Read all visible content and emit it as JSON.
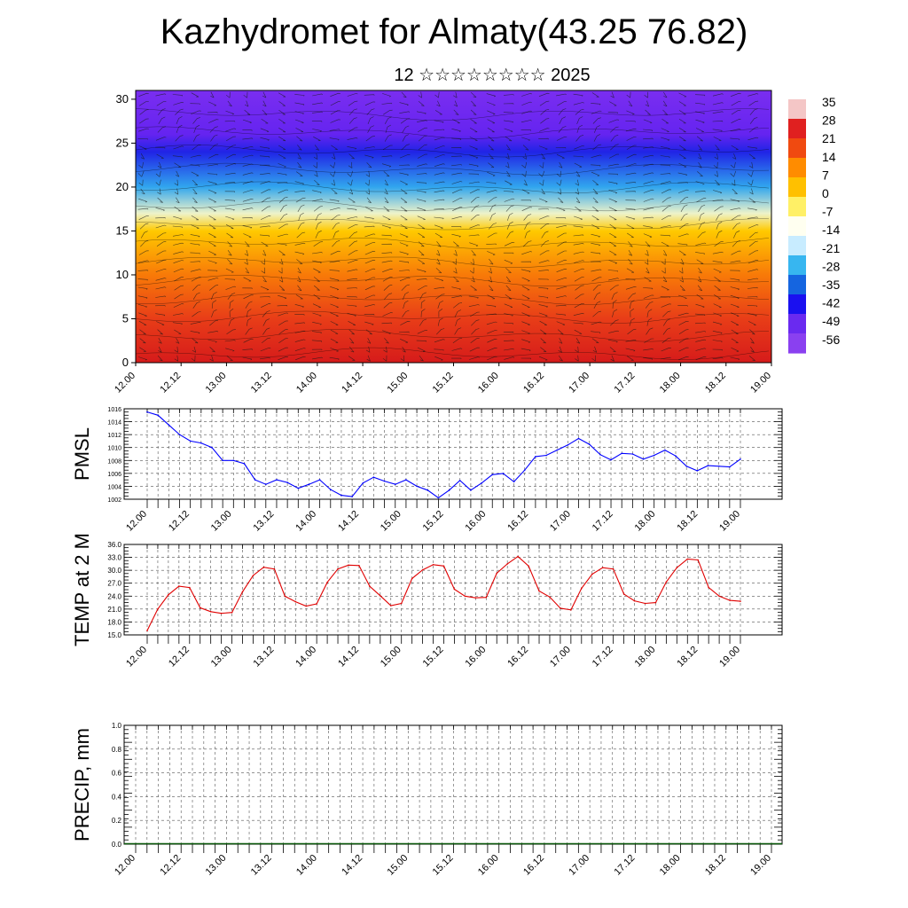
{
  "title": "Kazhydromet for Almaty(43.25 76.82)",
  "subtitle": "12 ☆☆☆☆☆☆☆☆ 2025",
  "chart_data": [
    {
      "type": "heatmap",
      "name": "temperature-cross-section",
      "x_tick_labels": [
        "12.00",
        "12.12",
        "13.00",
        "13.12",
        "14.00",
        "14.12",
        "15.00",
        "15.12",
        "16.00",
        "16.12",
        "17.00",
        "17.12",
        "18.00",
        "18.12",
        "19.00"
      ],
      "y_tick_labels": [
        "0",
        "5",
        "10",
        "15",
        "20",
        "25",
        "30"
      ],
      "ylim": [
        0,
        31
      ],
      "levels": [
        0,
        5,
        10,
        15,
        17,
        20,
        24,
        26,
        31
      ],
      "values": [
        27,
        17,
        7,
        -5,
        -14,
        -28,
        -47,
        -56,
        -58
      ],
      "colorbar": {
        "labels": [
          "35",
          "28",
          "21",
          "14",
          "7",
          "0",
          "-7",
          "-14",
          "-21",
          "-28",
          "-35",
          "-42",
          "-49",
          "-56"
        ],
        "colors": [
          "#f4c6c6",
          "#e02020",
          "#f04a10",
          "#ff8c00",
          "#ffc000",
          "#fff066",
          "#fffff0",
          "#c8ecff",
          "#37b6f0",
          "#1565e0",
          "#1a10f0",
          "#6a2af0",
          "#8a40f0"
        ]
      },
      "wind_barbs": true
    },
    {
      "type": "line",
      "name": "PMSL",
      "ylabel": "PMSL",
      "ylim": [
        1002,
        1016
      ],
      "y_tick_labels": [
        "1016",
        "1014",
        "1012",
        "1010",
        "1008",
        "1006",
        "1004",
        "1002"
      ],
      "x_tick_labels": [
        "12.00",
        "12.12",
        "13.00",
        "13.12",
        "14.00",
        "14.12",
        "15.00",
        "15.12",
        "16.00",
        "16.12",
        "17.00",
        "17.12",
        "18.00",
        "18.12",
        "19.00"
      ],
      "color": "#0000ff",
      "values": [
        1015.5,
        1015.0,
        1013.5,
        1012.0,
        1011.0,
        1010.7,
        1010.0,
        1008.0,
        1008.0,
        1007.5,
        1005.0,
        1004.3,
        1005.0,
        1004.6,
        1003.7,
        1004.3,
        1005.0,
        1003.5,
        1002.6,
        1002.4,
        1004.5,
        1005.4,
        1004.8,
        1004.3,
        1005.0,
        1004.0,
        1003.4,
        1002.2,
        1003.4,
        1004.9,
        1003.4,
        1004.5,
        1005.8,
        1006.0,
        1004.7,
        1006.5,
        1008.6,
        1008.8,
        1009.6,
        1010.4,
        1011.4,
        1010.5,
        1008.9,
        1008.1,
        1009.1,
        1009.0,
        1008.2,
        1008.8,
        1009.6,
        1008.7,
        1007.1,
        1006.4,
        1007.2,
        1007.1,
        1007.0,
        1008.2
      ]
    },
    {
      "type": "line",
      "name": "TEMP at 2 M",
      "ylabel": "TEMP at 2 M",
      "ylim": [
        15,
        36
      ],
      "y_tick_labels": [
        "36.0",
        "33.0",
        "30.0",
        "27.0",
        "24.0",
        "21.0",
        "18.0",
        "15.0"
      ],
      "x_tick_labels": [
        "12.00",
        "12.12",
        "13.00",
        "13.12",
        "14.00",
        "14.12",
        "15.00",
        "15.12",
        "16.00",
        "16.12",
        "17.00",
        "17.12",
        "18.00",
        "18.12",
        "19.00"
      ],
      "color": "#e00000",
      "values": [
        16.0,
        21.0,
        24.3,
        26.3,
        26.0,
        21.3,
        20.4,
        20.0,
        20.2,
        25.0,
        28.8,
        30.7,
        30.3,
        24.0,
        22.7,
        21.7,
        22.2,
        27.2,
        30.3,
        31.2,
        31.1,
        26.3,
        24.1,
        21.8,
        22.3,
        28.1,
        30.1,
        31.3,
        31.0,
        25.6,
        24.0,
        23.6,
        23.7,
        29.3,
        31.5,
        33.2,
        31.0,
        25.2,
        23.8,
        21.2,
        20.8,
        25.8,
        29.1,
        30.6,
        30.3,
        24.5,
        22.9,
        22.3,
        22.5,
        27.3,
        30.6,
        32.6,
        32.4,
        26.0,
        24.0,
        23.0,
        22.8
      ]
    },
    {
      "type": "line",
      "name": "PRECIP, mm",
      "ylabel": "PRECIP, mm",
      "ylim": [
        0.0,
        1.0
      ],
      "y_tick_labels": [
        "1.0",
        "0.8",
        "0.6",
        "0.4",
        "0.2",
        "0.0"
      ],
      "x_tick_labels": [
        "12.00",
        "12.12",
        "13.00",
        "13.12",
        "14.00",
        "14.12",
        "15.00",
        "15.12",
        "16.00",
        "16.12",
        "17.00",
        "17.12",
        "18.00",
        "18.12",
        "19.00"
      ],
      "values": [
        0,
        0,
        0,
        0,
        0,
        0,
        0,
        0,
        0,
        0,
        0,
        0,
        0,
        0,
        0,
        0,
        0,
        0,
        0,
        0,
        0,
        0,
        0,
        0,
        0,
        0,
        0,
        0,
        0,
        0,
        0,
        0,
        0,
        0,
        0,
        0,
        0,
        0,
        0,
        0,
        0,
        0,
        0,
        0,
        0,
        0,
        0,
        0,
        0,
        0,
        0,
        0,
        0,
        0,
        0,
        0,
        0
      ]
    }
  ]
}
